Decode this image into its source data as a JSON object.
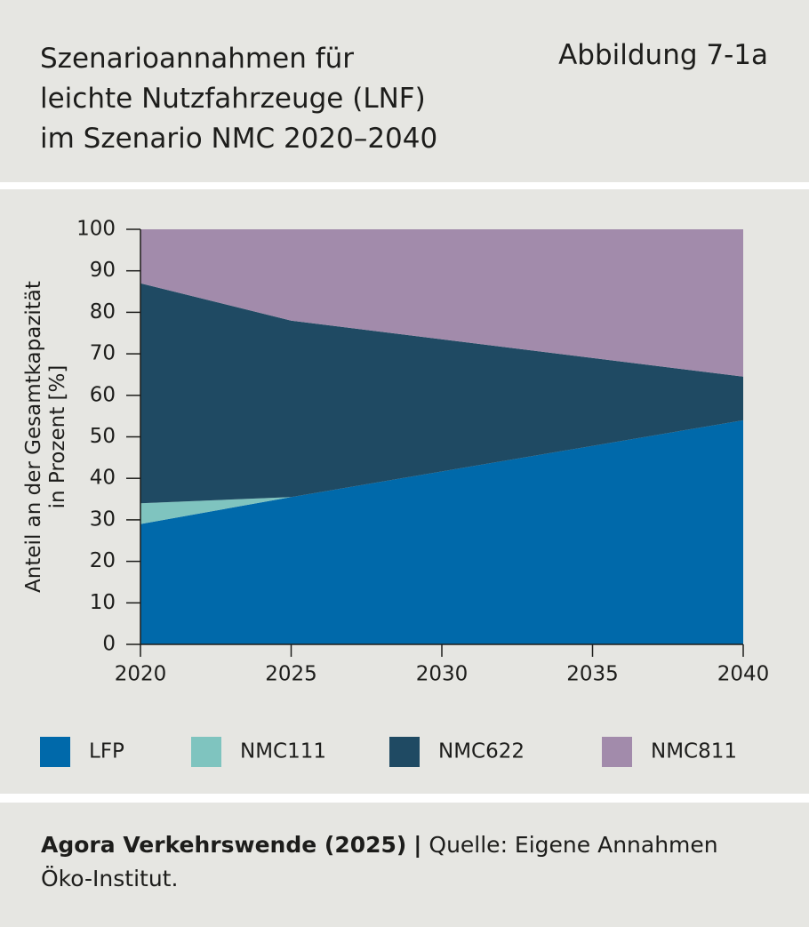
{
  "chart_data": {
    "type": "stacked-area",
    "title": [
      "Szenarioannahmen für",
      "leichte Nutzfahrzeuge (LNF)",
      "im Szenario NMC 2020–2040"
    ],
    "figure_label": "Abbildung 7-1a",
    "y_label": [
      "Anteil an der Gesamtkapazität",
      "in Prozent [%]"
    ],
    "x": [
      2020,
      2025,
      2040
    ],
    "xlim": [
      2020,
      2040
    ],
    "xticks": [
      2020,
      2025,
      2030,
      2035,
      2040
    ],
    "ylim": [
      0,
      100
    ],
    "yticks": [
      0,
      10,
      20,
      30,
      40,
      50,
      60,
      70,
      80,
      90,
      100
    ],
    "series": [
      {
        "name": "LFP",
        "color": "#0069aa",
        "values": [
          29,
          35.5,
          54
        ]
      },
      {
        "name": "NMC111",
        "color": "#7fc4bf",
        "values": [
          5,
          0,
          0
        ]
      },
      {
        "name": "NMC622",
        "color": "#1f4a63",
        "values": [
          53,
          42.5,
          10.5
        ]
      },
      {
        "name": "NMC811",
        "color": "#a28bab",
        "values": [
          13,
          22,
          35.5
        ]
      }
    ]
  },
  "footer": {
    "publisher": "Agora Verkehrswende (2025)",
    "separator": "|",
    "source": "Quelle: Eigene Annahmen Öko-Institut."
  }
}
